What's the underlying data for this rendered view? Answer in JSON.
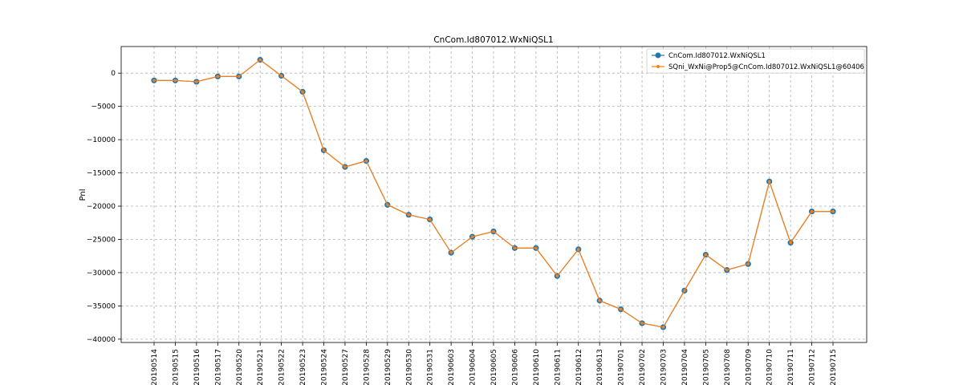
{
  "chart_data": {
    "type": "line",
    "title": "CnCom.Id807012.WxNiQSL1",
    "xlabel": "",
    "ylabel": "Pnl",
    "ylim": [
      -40500,
      4000
    ],
    "yticks": [
      0,
      -5000,
      -10000,
      -15000,
      -20000,
      -25000,
      -30000,
      -35000,
      -40000
    ],
    "ytick_labels": [
      "0",
      "−5000",
      "−10000",
      "−15000",
      "−20000",
      "−25000",
      "−30000",
      "−35000",
      "−40000"
    ],
    "grid": true,
    "legend_position": "top-right",
    "categories": [
      "20190514",
      "20190515",
      "20190516",
      "20190517",
      "20190520",
      "20190521",
      "20190522",
      "20190523",
      "20190524",
      "20190527",
      "20190528",
      "20190529",
      "20190530",
      "20190531",
      "20190603",
      "20190604",
      "20190605",
      "20190606",
      "20190610",
      "20190611",
      "20190612",
      "20190613",
      "20190701",
      "20190702",
      "20190703",
      "20190704",
      "20190705",
      "20190708",
      "20190709",
      "20190710",
      "20190711",
      "20190712",
      "20190715"
    ],
    "series": [
      {
        "name": "CnCom.Id807012.WxNiQSL1",
        "color": "#1f77b4",
        "marker": "large-circle",
        "values": [
          -1100,
          -1100,
          -1300,
          -500,
          -500,
          2000,
          -400,
          -2800,
          -11600,
          -14100,
          -13200,
          -19800,
          -21300,
          -22000,
          -27000,
          -24600,
          -23800,
          -26300,
          -26300,
          -30500,
          -26500,
          -34200,
          -35500,
          -37600,
          -38200,
          -32700,
          -27300,
          -29600,
          -28700,
          -16300,
          -25500,
          -20800,
          -20800
        ]
      },
      {
        "name": "SQni_WxNi@Prop5@CnCom.Id807012.WxNiQSL1@60406",
        "color": "#ff7f0e",
        "marker": "small-dot",
        "values": [
          -1100,
          -1100,
          -1300,
          -500,
          -500,
          2000,
          -400,
          -2800,
          -11600,
          -14100,
          -13200,
          -19800,
          -21300,
          -22000,
          -27000,
          -24600,
          -23800,
          -26300,
          -26300,
          -30500,
          -26500,
          -34200,
          -35500,
          -37600,
          -38200,
          -32700,
          -27300,
          -29600,
          -28700,
          -16300,
          -25500,
          -20800,
          -20800
        ]
      }
    ]
  }
}
